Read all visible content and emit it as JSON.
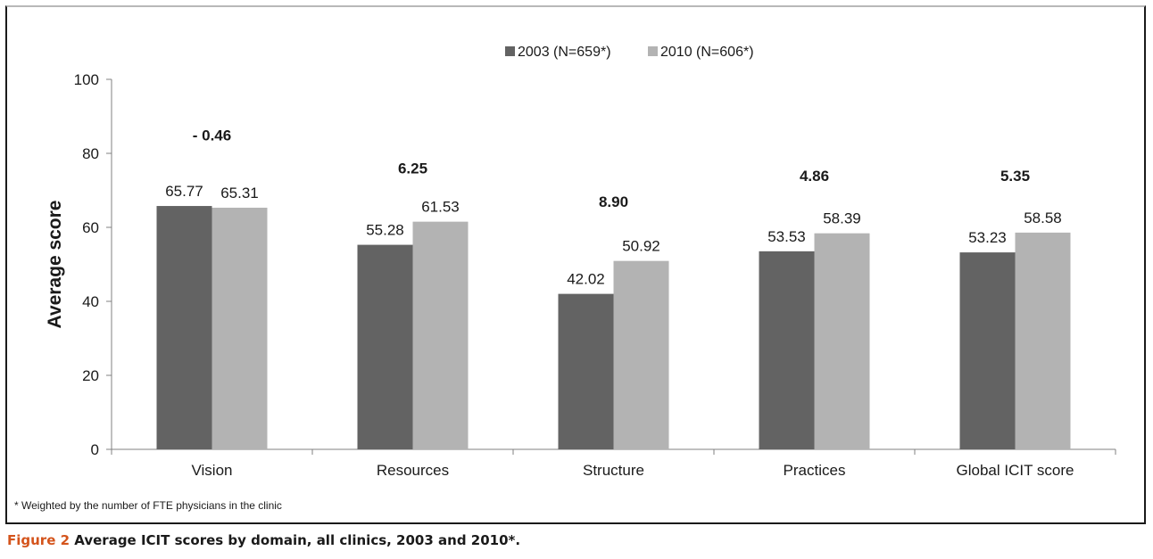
{
  "chart_data": {
    "type": "bar",
    "categories": [
      "Vision",
      "Resources",
      "Structure",
      "Practices",
      "Global ICIT score"
    ],
    "series": [
      {
        "name": "2003 (N=659*)",
        "values": [
          65.77,
          55.28,
          42.02,
          53.53,
          53.23
        ],
        "color": "#636363"
      },
      {
        "name": "2010 (N=606*)",
        "values": [
          65.31,
          61.53,
          50.92,
          58.39,
          58.58
        ],
        "color": "#b3b3b3"
      }
    ],
    "data_labels": [
      [
        "65.77",
        "55.28",
        "42.02",
        "53.53",
        "53.23"
      ],
      [
        "65.31",
        "61.53",
        "50.92",
        "58.39",
        "58.58"
      ]
    ],
    "differences": [
      {
        "label": "- 0.46",
        "y": 85
      },
      {
        "label": "6.25",
        "y": 76
      },
      {
        "label": "8.90",
        "y": 67
      },
      {
        "label": "4.86",
        "y": 74
      },
      {
        "label": "5.35",
        "y": 74
      }
    ],
    "title": "",
    "xlabel": "",
    "ylabel": "Average score",
    "ylim": [
      0,
      100
    ],
    "yticks": [
      0,
      20,
      40,
      60,
      80,
      100
    ],
    "grid": false,
    "legend": "top-center"
  },
  "footnote": "* Weighted by the number of FTE physicians in the clinic",
  "caption": {
    "label": "Figure 2",
    "text": " Average ICIT scores by domain, all clinics, 2003 and 2010*."
  }
}
